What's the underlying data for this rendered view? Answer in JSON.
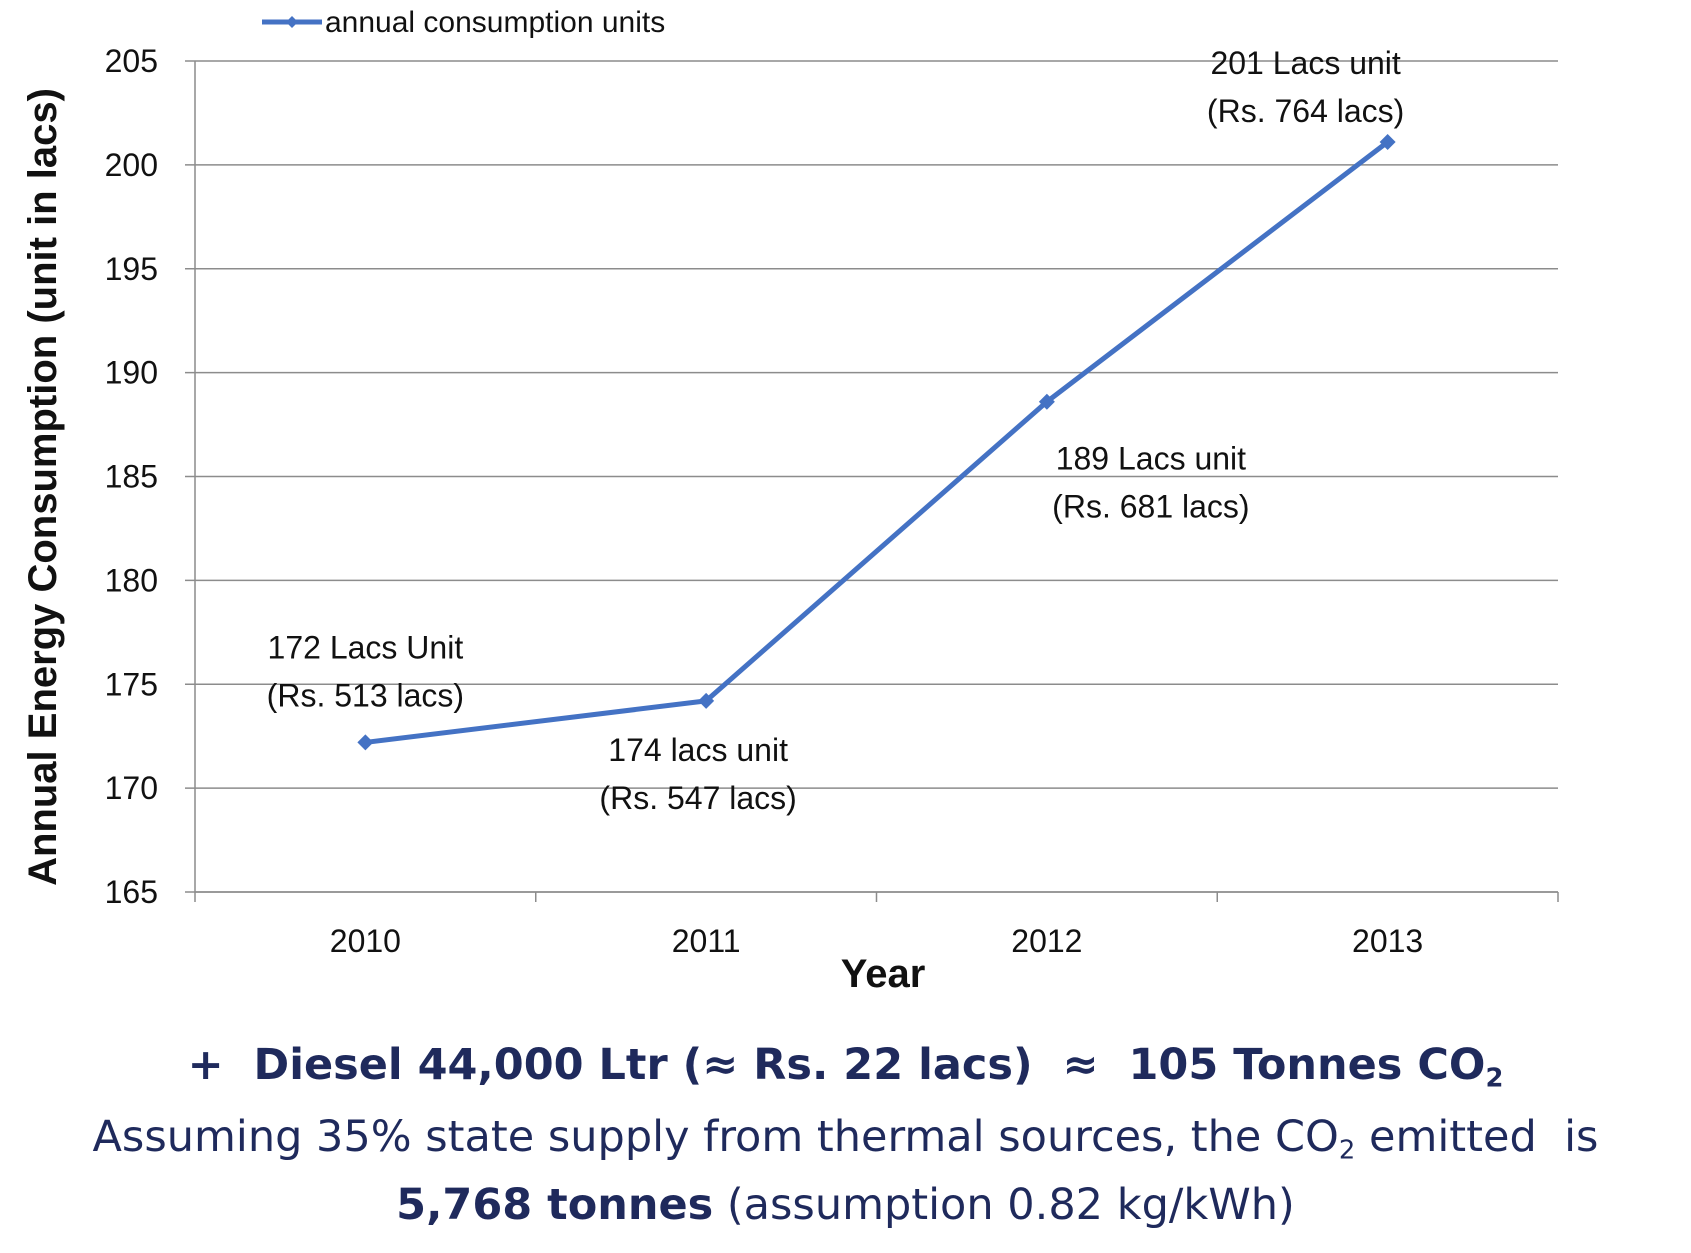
{
  "chart_data": {
    "type": "line",
    "categories": [
      "2010",
      "2011",
      "2012",
      "2013"
    ],
    "series": [
      {
        "name": "annual consumption units",
        "values": [
          172.2,
          174.2,
          188.6,
          201.1
        ],
        "color": "#4472c4"
      }
    ],
    "xlabel": "Year",
    "ylabel": "Annual Energy Consumption (unit in lacs)",
    "ylim": [
      165,
      205
    ],
    "yticks": [
      "165",
      "170",
      "175",
      "180",
      "185",
      "190",
      "195",
      "200",
      "205"
    ],
    "grid": true,
    "legend_position": "top-left",
    "annotations": [
      {
        "line1": "172 Lacs Unit",
        "line2": "(Rs. 513 lacs)"
      },
      {
        "line1": "174 lacs unit",
        "line2": "(Rs. 547 lacs)"
      },
      {
        "line1": "189 Lacs unit",
        "line2": "(Rs. 681 lacs)"
      },
      {
        "line1": "201 Lacs unit",
        "line2": "(Rs. 764 lacs)"
      }
    ]
  },
  "footer": {
    "line1_prefix": "+  Diesel 44,000 Ltr (≈ Rs. 22 lacs)  ≈  105 Tonnes CO",
    "line1_sub": "2",
    "line2_prefix": "Assuming 35% state supply from thermal sources, the CO",
    "line2_sub": "2",
    "line2_suffix": " emitted  is",
    "line3_bold": "5,768 tonnes",
    "line3_rest": " (assumption 0.82 kg/kWh)",
    "text_color": "#1f2a5c"
  }
}
